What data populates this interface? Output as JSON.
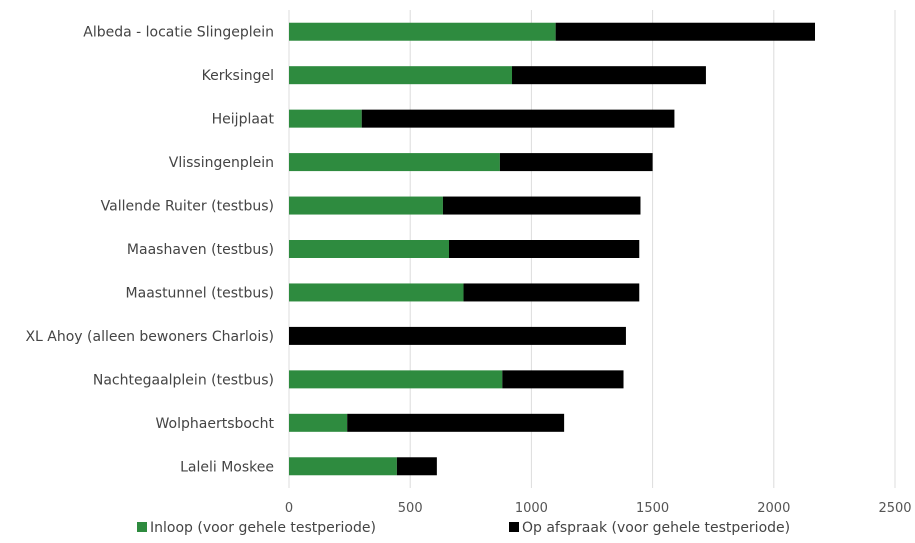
{
  "chart_data": {
    "type": "bar",
    "orientation": "horizontal",
    "stacked": true,
    "categories": [
      "Albeda - locatie Slingeplein",
      "Kerksingel",
      "Heijplaat",
      "Vlissingenplein",
      "Vallende Ruiter (testbus)",
      "Maashaven (testbus)",
      "Maastunnel (testbus)",
      "XL Ahoy (alleen bewoners Charlois)",
      "Nachtegaalplein (testbus)",
      "Wolphaertsbocht",
      "Laleli Moskee"
    ],
    "series": [
      {
        "name": "Inloop (voor gehele testperiode)",
        "color": "#2e8b3f",
        "values": [
          1100,
          920,
          300,
          870,
          635,
          660,
          720,
          0,
          880,
          240,
          445
        ]
      },
      {
        "name": "Op afspraak (voor gehele testperiode)",
        "color": "#000000",
        "values": [
          1070,
          800,
          1290,
          630,
          815,
          785,
          725,
          1390,
          500,
          895,
          165
        ]
      }
    ],
    "xlim": [
      0,
      2500
    ],
    "xticks": [
      "0",
      "500",
      "1000",
      "1500",
      "2000",
      "2500"
    ],
    "grid": true,
    "legend_position": "bottom"
  }
}
